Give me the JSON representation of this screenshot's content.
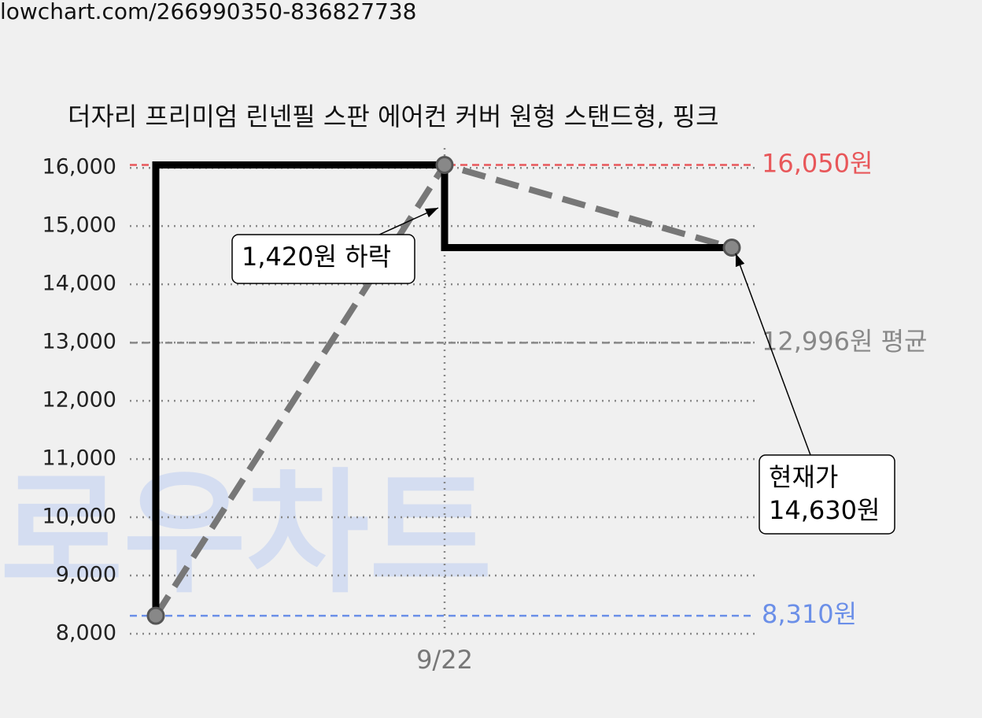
{
  "header": {
    "url": "lowchart.com/266990350-836827738"
  },
  "watermark": "로우차트",
  "chart_data": {
    "type": "line",
    "title": "더자리 프리미엄 린넨필 스판 에어컨 커버 원형 스탠드형, 핑크",
    "categories": [
      null,
      "9/22",
      null
    ],
    "series": [
      {
        "color": "#777777",
        "style": "dashed",
        "markers": true,
        "values": [
          8310,
          16050,
          14630
        ]
      },
      {
        "color": "#000000",
        "style": "step",
        "values": [
          16050,
          14630,
          14630
        ]
      }
    ],
    "ylim": [
      8000,
      16300
    ],
    "yticks": [
      {
        "value": 8000,
        "label": "8,000"
      },
      {
        "value": 9000,
        "label": "9,000"
      },
      {
        "value": 10000,
        "label": "10,000"
      },
      {
        "value": 11000,
        "label": "11,000"
      },
      {
        "value": 12000,
        "label": "12,000"
      },
      {
        "value": 13000,
        "label": "13,000"
      },
      {
        "value": 14000,
        "label": "14,000"
      },
      {
        "value": 15000,
        "label": "15,000"
      },
      {
        "value": 16000,
        "label": "16,000"
      }
    ],
    "grid": true,
    "hlines": [
      {
        "value": 16050,
        "label": "16,050원",
        "color": "#e8575a"
      },
      {
        "value": 12996,
        "label": "12,996원 평균",
        "color": "#888888"
      },
      {
        "value": 8310,
        "label": "8,310원",
        "color": "#6b8fe8"
      }
    ],
    "annotations": [
      {
        "lines": [
          "1,420원 하락"
        ]
      },
      {
        "lines": [
          "현재가",
          "14,630원"
        ]
      }
    ]
  }
}
